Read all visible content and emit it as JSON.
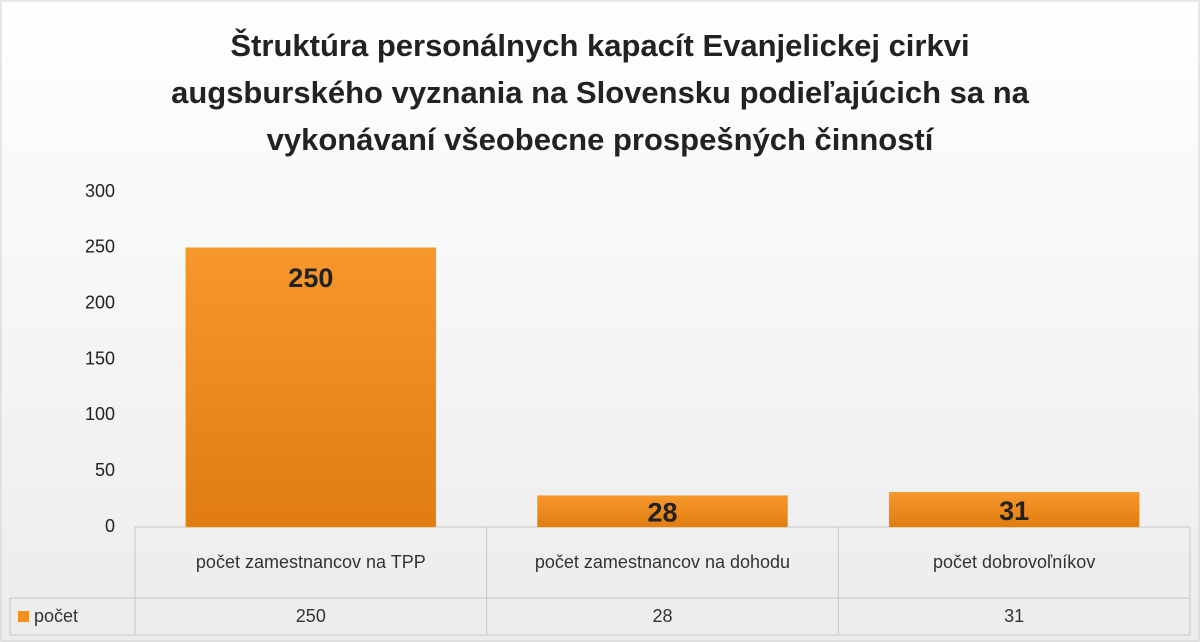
{
  "chart_data": {
    "type": "bar",
    "title": "Štruktúra personálnych kapacít Evanjelickej cirkvi augsburského vyznania na Slovensku podieľajúcich sa na vykonávaní všeobecne prospešných činností",
    "categories": [
      "počet zamestnancov na TPP",
      "počet zamestnancov na dohodu",
      "počet dobrovoľníkov"
    ],
    "series": [
      {
        "name": "počet",
        "color": "#f0901e",
        "values": [
          250,
          28,
          31
        ]
      }
    ],
    "ylim": [
      0,
      300
    ],
    "yticks": [
      0,
      50,
      100,
      150,
      200,
      250,
      300
    ]
  }
}
